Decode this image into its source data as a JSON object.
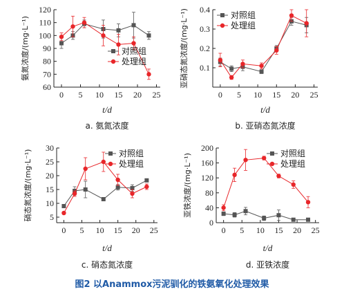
{
  "caption": "图2  以Anammox污泥驯化的铁氨氧化处理效果",
  "colors": {
    "control": "#555555",
    "treatment": "#e8262a"
  },
  "chart_data": [
    {
      "type": "line",
      "sublabel": "a. 氨氮浓度",
      "ylabel": "氨氮浓度/(mg·L⁻¹)",
      "xlabel": "t/d",
      "xlim": [
        -2,
        26
      ],
      "ylim": [
        60,
        120
      ],
      "xticks": [
        0,
        5,
        10,
        15,
        20,
        25
      ],
      "yticks": [
        60,
        70,
        80,
        90,
        100,
        110,
        120
      ],
      "legend_position": "top-right",
      "series": [
        {
          "name": "对照组",
          "marker": "square",
          "x": [
            0,
            3,
            6,
            11,
            15,
            19,
            23
          ],
          "y": [
            94,
            100,
            109,
            105,
            104,
            108,
            100
          ],
          "err": [
            4,
            3,
            3,
            7,
            5,
            10,
            3
          ]
        },
        {
          "name": "处理组",
          "marker": "circle",
          "x": [
            0,
            3,
            6,
            11,
            15,
            19,
            23
          ],
          "y": [
            99,
            107,
            110,
            100,
            93,
            94,
            70
          ],
          "err": [
            3,
            8,
            4,
            8,
            8,
            5,
            4
          ]
        }
      ]
    },
    {
      "type": "line",
      "sublabel": "b. 亚硝态氮浓度",
      "ylabel": "亚硝态氮浓度/(mg·L⁻¹)",
      "xlabel": "t/d",
      "xlim": [
        -2,
        26
      ],
      "ylim": [
        0,
        0.4
      ],
      "xticks": [
        0,
        5,
        10,
        15,
        20,
        25
      ],
      "yticks": [
        0.1,
        0.2,
        0.3,
        0.4
      ],
      "legend_position": "top-left",
      "series": [
        {
          "name": "对照组",
          "marker": "square",
          "x": [
            0,
            3,
            6,
            11,
            15,
            19,
            23
          ],
          "y": [
            0.13,
            0.095,
            0.105,
            0.08,
            0.2,
            0.34,
            0.32
          ],
          "err": [
            0.02,
            0.015,
            0.02,
            0.01,
            0.015,
            0.02,
            0.04
          ]
        },
        {
          "name": "处理组",
          "marker": "circle",
          "x": [
            0,
            3,
            6,
            11,
            15,
            19,
            23
          ],
          "y": [
            0.14,
            0.05,
            0.12,
            0.11,
            0.19,
            0.37,
            0.33
          ],
          "err": [
            0.035,
            0.01,
            0.02,
            0.015,
            0.02,
            0.03,
            0.07
          ]
        }
      ]
    },
    {
      "type": "line",
      "sublabel": "c. 硝态氮浓度",
      "ylabel": "硝态氮浓度/(mg·L⁻¹)",
      "xlabel": "t/d",
      "xlim": [
        -2,
        26
      ],
      "ylim": [
        3,
        30
      ],
      "xticks": [
        0,
        5,
        10,
        15,
        20,
        25
      ],
      "yticks": [
        5,
        10,
        15,
        20,
        25,
        30
      ],
      "legend_position": "top-right",
      "series": [
        {
          "name": "对照组",
          "marker": "square",
          "x": [
            0,
            3,
            6,
            11,
            15,
            19,
            23
          ],
          "y": [
            9,
            14.5,
            15,
            11.5,
            15.8,
            15.5,
            18.3
          ],
          "err": [
            0.6,
            1.5,
            3,
            0.5,
            1,
            1.2,
            0.5
          ]
        },
        {
          "name": "处理组",
          "marker": "circle",
          "x": [
            0,
            3,
            6,
            11,
            15,
            19,
            23
          ],
          "y": [
            6.5,
            13.5,
            22.5,
            25,
            18.5,
            13.5,
            16
          ],
          "err": [
            0.5,
            1,
            4,
            3.5,
            2,
            1.5,
            1
          ]
        }
      ]
    },
    {
      "type": "line",
      "sublabel": "d. 亚铁浓度",
      "ylabel": "亚铁浓度/(mg·L⁻¹)",
      "xlabel": "t/d",
      "xlim": [
        -2,
        26
      ],
      "ylim": [
        0,
        200
      ],
      "xticks": [
        0,
        5,
        10,
        15,
        20,
        25
      ],
      "yticks": [
        0,
        40,
        80,
        120,
        160,
        200
      ],
      "legend_position": "top-right",
      "series": [
        {
          "name": "对照组",
          "marker": "square",
          "x": [
            0,
            3,
            6,
            11,
            15,
            19,
            23
          ],
          "y": [
            24,
            21,
            31,
            12,
            20,
            8,
            8
          ],
          "err": [
            5,
            6,
            10,
            6,
            14,
            3,
            3
          ]
        },
        {
          "name": "处理组",
          "marker": "circle",
          "x": [
            0,
            3,
            6,
            11,
            15,
            19,
            23
          ],
          "y": [
            40,
            128,
            168,
            173,
            125,
            102,
            55
          ],
          "err": [
            8,
            18,
            28,
            5,
            5,
            10,
            15
          ]
        }
      ]
    }
  ]
}
